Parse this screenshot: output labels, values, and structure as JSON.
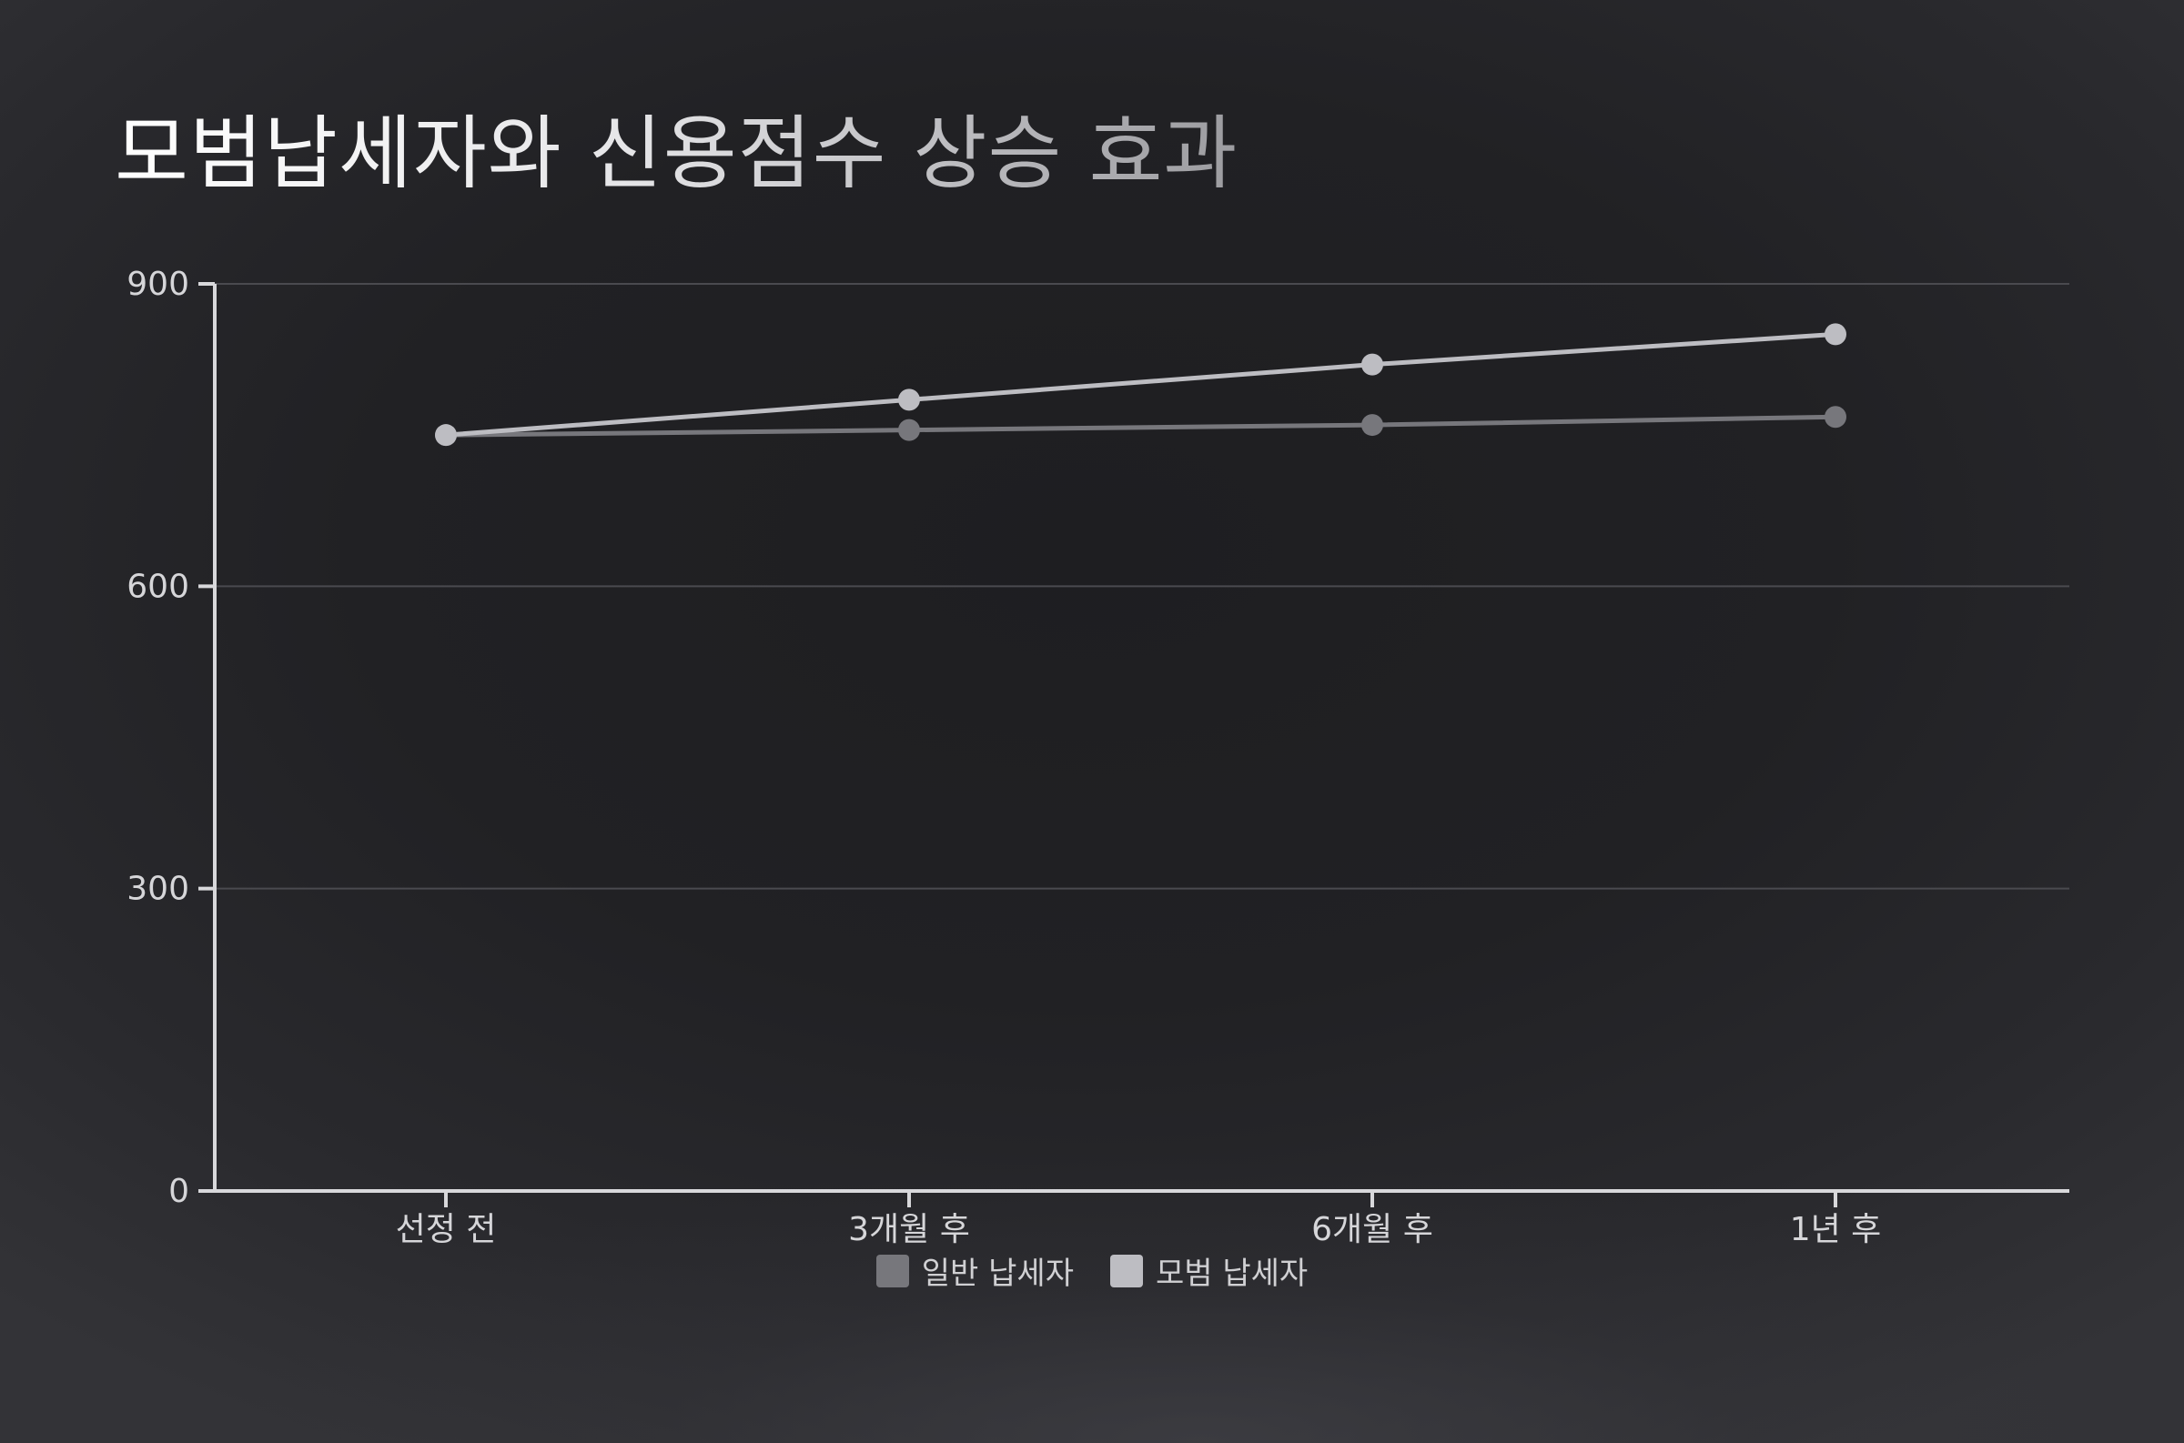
{
  "title": "모범납세자와 신용점수 상승 효과",
  "colors": {
    "series_general": "#77777c",
    "series_model": "#bdbdc2",
    "axis": "#d8d8db",
    "grid": "#4a4a4f",
    "text": "#d6d6d9"
  },
  "chart_data": {
    "type": "line",
    "title": "모범납세자와 신용점수 상승 효과",
    "xlabel": "",
    "ylabel": "",
    "categories": [
      "선정 전",
      "3개월 후",
      "6개월 후",
      "1년 후"
    ],
    "y_ticks": [
      0,
      300,
      600,
      900
    ],
    "ylim": [
      0,
      900
    ],
    "grid": true,
    "legend_position": "bottom-center",
    "series": [
      {
        "name": "일반 납세자",
        "values": [
          750,
          755,
          760,
          768
        ],
        "color": "#77777c"
      },
      {
        "name": "모범 납세자",
        "values": [
          750,
          785,
          820,
          850
        ],
        "color": "#bdbdc2"
      }
    ]
  },
  "legend": {
    "items": [
      {
        "label": "일반 납세자",
        "color": "#77777c"
      },
      {
        "label": "모범 납세자",
        "color": "#bdbdc2"
      }
    ]
  }
}
